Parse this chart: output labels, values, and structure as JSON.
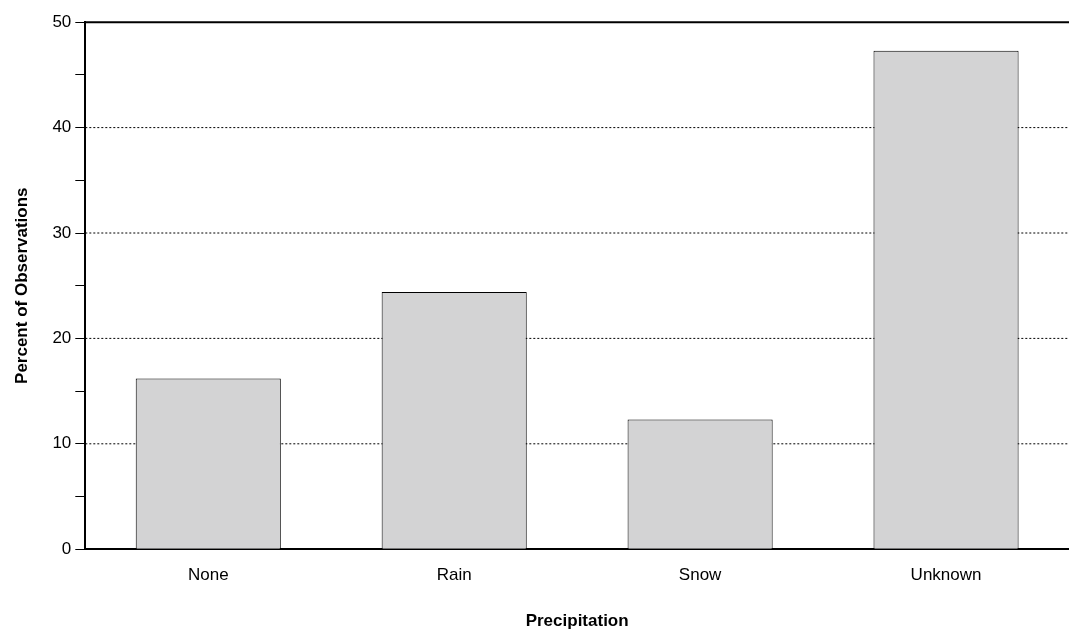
{
  "chart_data": {
    "type": "bar",
    "xlabel": "Precipitation",
    "ylabel": "Percent of Observations",
    "categories": [
      "None",
      "Rain",
      "Snow",
      "Unknown"
    ],
    "values": [
      16.2,
      24.4,
      12.3,
      47.3
    ],
    "color": "#d3d3d4",
    "ylim": [
      0,
      50
    ],
    "yticks": [
      0,
      {
        "value": 5,
        "label": null
      },
      10,
      {
        "value": 15,
        "label": null
      },
      20,
      {
        "value": 25,
        "label": null
      },
      30,
      {
        "value": 35,
        "label": null
      },
      40,
      {
        "value": 45,
        "label": null
      },
      50
    ],
    "grid": "y",
    "line_style": "dotted",
    "legend": false
  }
}
